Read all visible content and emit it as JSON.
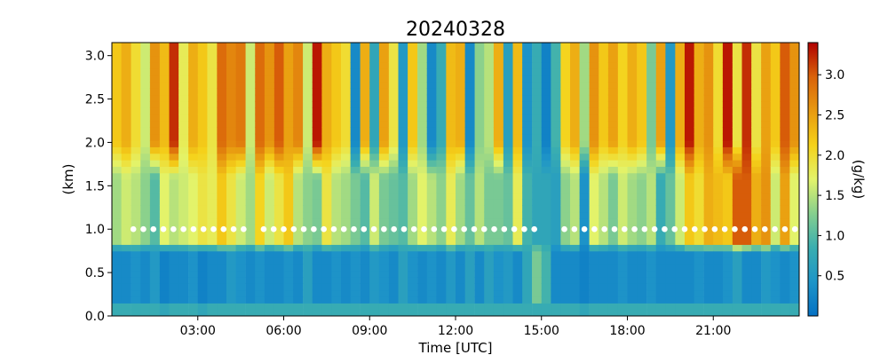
{
  "chart_data": {
    "type": "heatmap",
    "title": "20240328",
    "xlabel": "Time [UTC]",
    "ylabel": "(km)",
    "colorbar_label": "(g/kg)",
    "xlim": [
      0,
      24
    ],
    "ylim": [
      0.0,
      3.15
    ],
    "x_ticks": [
      {
        "value": 3,
        "label": "03:00"
      },
      {
        "value": 6,
        "label": "06:00"
      },
      {
        "value": 9,
        "label": "09:00"
      },
      {
        "value": 12,
        "label": "12:00"
      },
      {
        "value": 15,
        "label": "15:00"
      },
      {
        "value": 18,
        "label": "18:00"
      },
      {
        "value": 21,
        "label": "21:00"
      }
    ],
    "y_ticks": [
      {
        "value": 0.0,
        "label": "0.0"
      },
      {
        "value": 0.5,
        "label": "0.5"
      },
      {
        "value": 1.0,
        "label": "1.0"
      },
      {
        "value": 1.5,
        "label": "1.5"
      },
      {
        "value": 2.0,
        "label": "2.0"
      },
      {
        "value": 2.5,
        "label": "2.5"
      },
      {
        "value": 3.0,
        "label": "3.0"
      }
    ],
    "colorbar_range": [
      0.0,
      3.4
    ],
    "colorbar_ticks": [
      {
        "value": 0.5,
        "label": "0.5"
      },
      {
        "value": 1.0,
        "label": "1.0"
      },
      {
        "value": 1.5,
        "label": "1.5"
      },
      {
        "value": 2.0,
        "label": "2.0"
      },
      {
        "value": 2.5,
        "label": "2.5"
      },
      {
        "value": 3.0,
        "label": "3.0"
      }
    ],
    "colormap": [
      "#0571c4",
      "#1e95c8",
      "#3aaeb0",
      "#86cf8e",
      "#e3f36a",
      "#f5d21a",
      "#e89a10",
      "#d9620a",
      "#b00000"
    ],
    "marker_height_km": 1.0,
    "marker_color": "#ffffff",
    "series": [
      {
        "name": "column-profiles",
        "note": "typical moisture by time: [t_hours, surface_layer, mid_1km, upper_2_3km]",
        "profiles": [
          [
            0.0,
            0.3,
            1.4,
            2.2
          ],
          [
            0.33,
            0.3,
            1.6,
            2.4
          ],
          [
            0.67,
            0.4,
            1.5,
            2.0
          ],
          [
            1.0,
            0.3,
            1.3,
            1.6
          ],
          [
            1.33,
            0.5,
            1.0,
            2.6
          ],
          [
            1.67,
            0.2,
            1.7,
            2.3
          ],
          [
            2.0,
            0.3,
            1.5,
            3.2
          ],
          [
            2.33,
            0.3,
            1.6,
            1.8
          ],
          [
            2.67,
            0.4,
            1.7,
            2.4
          ],
          [
            3.0,
            0.2,
            1.9,
            2.2
          ],
          [
            3.33,
            0.3,
            1.8,
            1.9
          ],
          [
            3.67,
            0.3,
            2.2,
            2.9
          ],
          [
            4.0,
            0.5,
            1.9,
            2.7
          ],
          [
            4.33,
            0.4,
            1.6,
            2.8
          ],
          [
            4.67,
            0.3,
            1.4,
            1.6
          ],
          [
            5.0,
            0.4,
            2.1,
            2.9
          ],
          [
            5.33,
            0.3,
            1.6,
            2.6
          ],
          [
            5.67,
            0.3,
            1.9,
            3.0
          ],
          [
            6.0,
            0.4,
            2.2,
            2.5
          ],
          [
            6.33,
            0.3,
            1.5,
            2.7
          ],
          [
            6.67,
            0.6,
            1.3,
            1.6
          ],
          [
            7.0,
            0.3,
            1.2,
            3.3
          ],
          [
            7.33,
            0.3,
            1.9,
            2.4
          ],
          [
            7.67,
            0.4,
            1.5,
            2.2
          ],
          [
            8.0,
            0.3,
            1.4,
            2.0
          ],
          [
            8.33,
            0.4,
            1.2,
            0.3
          ],
          [
            8.67,
            0.3,
            1.0,
            2.4
          ],
          [
            9.0,
            0.5,
            1.6,
            0.7
          ],
          [
            9.33,
            0.4,
            1.2,
            2.5
          ],
          [
            9.67,
            0.3,
            1.1,
            1.9
          ],
          [
            10.0,
            0.6,
            1.0,
            0.5
          ],
          [
            10.33,
            0.4,
            1.4,
            2.2
          ],
          [
            10.67,
            0.3,
            1.7,
            1.4
          ],
          [
            11.0,
            0.4,
            1.5,
            0.3
          ],
          [
            11.33,
            0.3,
            1.3,
            0.8
          ],
          [
            11.67,
            0.5,
            1.8,
            2.3
          ],
          [
            12.0,
            0.3,
            1.4,
            2.4
          ],
          [
            12.33,
            0.6,
            1.1,
            0.3
          ],
          [
            12.67,
            0.3,
            1.5,
            1.3
          ],
          [
            13.0,
            0.6,
            1.2,
            1.5
          ],
          [
            13.33,
            0.4,
            1.2,
            2.4
          ],
          [
            13.67,
            0.5,
            1.1,
            0.6
          ],
          [
            14.0,
            0.3,
            1.8,
            2.3
          ],
          [
            14.33,
            0.7,
            0.9,
            0.4
          ],
          [
            14.67,
            1.2,
            0.7,
            0.8
          ],
          [
            15.0,
            0.9,
            0.7,
            0.2
          ],
          [
            15.33,
            0.3,
            0.6,
            0.9
          ],
          [
            15.67,
            0.3,
            1.3,
            2.1
          ],
          [
            16.0,
            0.3,
            1.5,
            2.4
          ],
          [
            16.33,
            0.2,
            0.4,
            1.4
          ],
          [
            16.67,
            0.3,
            1.7,
            2.6
          ],
          [
            17.0,
            0.3,
            1.5,
            2.2
          ],
          [
            17.33,
            0.3,
            1.2,
            2.5
          ],
          [
            17.67,
            0.4,
            1.6,
            2.1
          ],
          [
            18.0,
            0.3,
            1.4,
            2.4
          ],
          [
            18.33,
            0.3,
            1.3,
            2.2
          ],
          [
            18.67,
            0.4,
            1.5,
            1.2
          ],
          [
            19.0,
            0.3,
            0.8,
            2.5
          ],
          [
            19.33,
            0.3,
            1.1,
            0.5
          ],
          [
            19.67,
            0.3,
            1.6,
            2.4
          ],
          [
            20.0,
            0.3,
            2.2,
            3.3
          ],
          [
            20.33,
            0.4,
            2.0,
            2.4
          ],
          [
            20.67,
            0.3,
            2.4,
            2.6
          ],
          [
            21.0,
            0.3,
            2.3,
            2.0
          ],
          [
            21.33,
            0.4,
            2.2,
            3.3
          ],
          [
            21.67,
            0.6,
            3.0,
            1.9
          ],
          [
            22.0,
            0.3,
            3.0,
            3.2
          ],
          [
            22.33,
            0.3,
            2.4,
            1.9
          ],
          [
            22.67,
            0.5,
            2.6,
            2.5
          ],
          [
            23.0,
            0.4,
            1.6,
            2.2
          ],
          [
            23.33,
            0.3,
            2.5,
            3.0
          ],
          [
            23.67,
            0.4,
            1.7,
            2.6
          ]
        ]
      }
    ]
  }
}
